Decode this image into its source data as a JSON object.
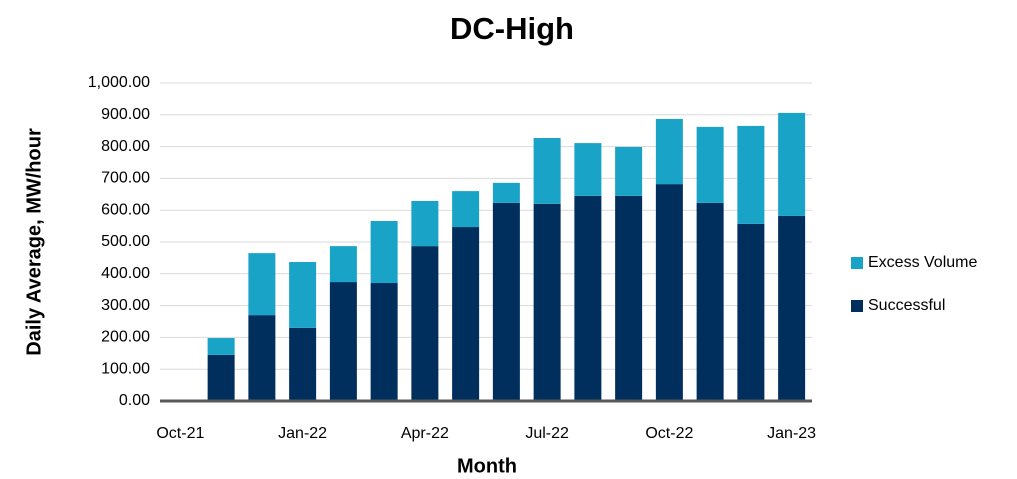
{
  "chart_data": {
    "type": "stacked_bar",
    "title": "DC-High",
    "x_label": "Month",
    "y_label": "Daily Average, MW/hour",
    "categories": [
      "Oct-21",
      null,
      null,
      "Jan-22",
      null,
      null,
      "Apr-22",
      null,
      null,
      "Jul-22",
      null,
      null,
      "Oct-22",
      null,
      null,
      "Jan-23"
    ],
    "series": [
      {
        "name": "Successful",
        "color": "#002e5d",
        "values": [
          0,
          145,
          270,
          230,
          374,
          371,
          487,
          547,
          623,
          620,
          645,
          645,
          682,
          623,
          557,
          582
        ]
      },
      {
        "name": "Excess Volume",
        "color": "#19a3c7",
        "values": [
          0,
          53,
          195,
          207,
          113,
          195,
          142,
          113,
          63,
          207,
          166,
          154,
          205,
          239,
          308,
          324
        ]
      }
    ],
    "ylim": [
      0,
      1000
    ],
    "yticks": [
      {
        "value": 0,
        "label": "0.00"
      },
      {
        "value": 100,
        "label": "100.00"
      },
      {
        "value": 200,
        "label": "200.00"
      },
      {
        "value": 300,
        "label": "300.00"
      },
      {
        "value": 400,
        "label": "400.00"
      },
      {
        "value": 500,
        "label": "500.00"
      },
      {
        "value": 600,
        "label": "600.00"
      },
      {
        "value": 700,
        "label": "700.00"
      },
      {
        "value": 800,
        "label": "800.00"
      },
      {
        "value": 900,
        "label": "900.00"
      },
      {
        "value": 1000,
        "label": "1,000.00"
      }
    ],
    "grid": true,
    "legend": "right"
  }
}
